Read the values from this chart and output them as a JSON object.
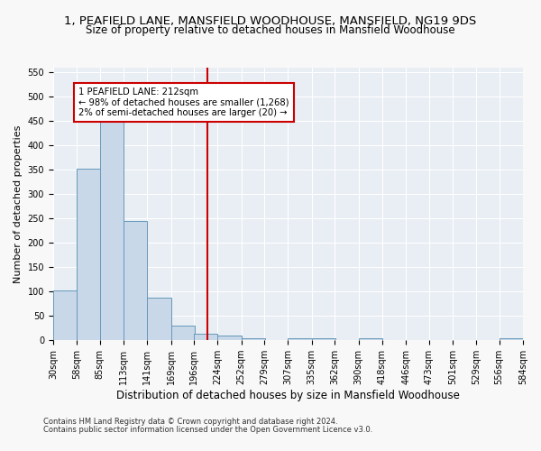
{
  "title": "1, PEAFIELD LANE, MANSFIELD WOODHOUSE, MANSFIELD, NG19 9DS",
  "subtitle": "Size of property relative to detached houses in Mansfield Woodhouse",
  "xlabel": "Distribution of detached houses by size in Mansfield Woodhouse",
  "ylabel": "Number of detached properties",
  "footer_line1": "Contains HM Land Registry data © Crown copyright and database right 2024.",
  "footer_line2": "Contains public sector information licensed under the Open Government Licence v3.0.",
  "bin_edges": [
    30,
    58,
    85,
    113,
    141,
    169,
    196,
    224,
    252,
    279,
    307,
    335,
    362,
    390,
    418,
    446,
    473,
    501,
    529,
    556,
    584
  ],
  "bar_heights": [
    103,
    353,
    448,
    245,
    88,
    30,
    14,
    10,
    5,
    0,
    5,
    5,
    0,
    5,
    0,
    0,
    0,
    0,
    0,
    5
  ],
  "bar_color": "#c8d8e8",
  "bar_edge_color": "#6699bb",
  "property_size": 212,
  "vline_color": "#cc0000",
  "annotation_line1": "1 PEAFIELD LANE: 212sqm",
  "annotation_line2": "← 98% of detached houses are smaller (1,268)",
  "annotation_line3": "2% of semi-detached houses are larger (20) →",
  "annotation_box_color": "#ffffff",
  "annotation_box_edge": "#cc0000",
  "ylim": [
    0,
    560
  ],
  "yticks": [
    0,
    50,
    100,
    150,
    200,
    250,
    300,
    350,
    400,
    450,
    500,
    550
  ],
  "background_color": "#e8eef4",
  "grid_color": "#ffffff",
  "title_fontsize": 9.5,
  "subtitle_fontsize": 8.5,
  "ylabel_fontsize": 8,
  "xlabel_fontsize": 8.5,
  "tick_fontsize": 7,
  "footer_fontsize": 6
}
